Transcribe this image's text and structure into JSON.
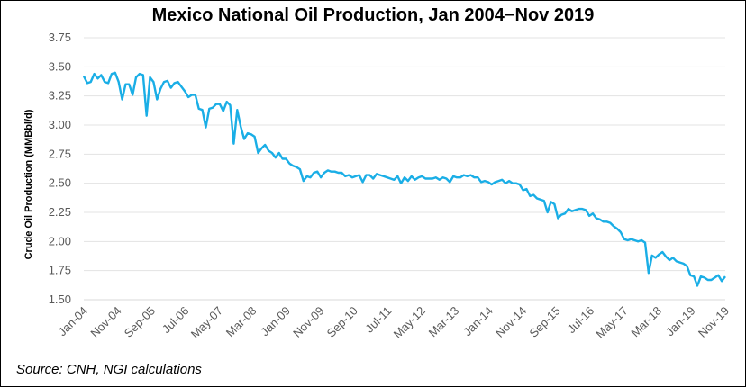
{
  "chart_data": {
    "type": "line",
    "title": "Mexico National Oil Production, Jan 2004−Nov 2019",
    "ylabel": "Crude Oil Production (MMBbl/d)",
    "xlabel": "",
    "ylim": [
      1.5,
      3.75
    ],
    "yticks": [
      "1.50",
      "1.75",
      "2.00",
      "2.25",
      "2.50",
      "2.75",
      "3.00",
      "3.25",
      "3.50",
      "3.75"
    ],
    "xticks": [
      "Jan-04",
      "Nov-04",
      "Sep-05",
      "Jul-06",
      "May-07",
      "Mar-08",
      "Jan-09",
      "Nov-09",
      "Sep-10",
      "Jul-11",
      "May-12",
      "Mar-13",
      "Jan-14",
      "Nov-14",
      "Sep-15",
      "Jul-16",
      "May-17",
      "Mar-18",
      "Jan-19",
      "Nov-19"
    ],
    "grid": "horizontal",
    "color": "#1aaee6",
    "series": [
      {
        "values": [
          3.42,
          3.36,
          3.37,
          3.44,
          3.4,
          3.43,
          3.37,
          3.36,
          3.44,
          3.45,
          3.37,
          3.22,
          3.35,
          3.35,
          3.26,
          3.41,
          3.44,
          3.43,
          3.08,
          3.41,
          3.37,
          3.22,
          3.31,
          3.37,
          3.38,
          3.32,
          3.36,
          3.37,
          3.33,
          3.29,
          3.24,
          3.26,
          3.26,
          3.14,
          3.13,
          2.98,
          3.14,
          3.15,
          3.18,
          3.18,
          3.12,
          3.2,
          3.17,
          2.84,
          3.13,
          2.99,
          2.88,
          2.93,
          2.92,
          2.9,
          2.76,
          2.8,
          2.83,
          2.78,
          2.76,
          2.72,
          2.76,
          2.71,
          2.71,
          2.67,
          2.65,
          2.64,
          2.62,
          2.52,
          2.56,
          2.55,
          2.59,
          2.6,
          2.55,
          2.59,
          2.61,
          2.6,
          2.6,
          2.59,
          2.59,
          2.56,
          2.57,
          2.55,
          2.56,
          2.57,
          2.51,
          2.57,
          2.57,
          2.54,
          2.58,
          2.57,
          2.56,
          2.55,
          2.54,
          2.53,
          2.56,
          2.5,
          2.55,
          2.52,
          2.56,
          2.53,
          2.55,
          2.56,
          2.54,
          2.54,
          2.54,
          2.55,
          2.53,
          2.55,
          2.54,
          2.51,
          2.56,
          2.55,
          2.55,
          2.57,
          2.56,
          2.57,
          2.55,
          2.55,
          2.51,
          2.52,
          2.51,
          2.49,
          2.51,
          2.52,
          2.53,
          2.5,
          2.52,
          2.5,
          2.5,
          2.49,
          2.44,
          2.45,
          2.39,
          2.4,
          2.37,
          2.36,
          2.35,
          2.25,
          2.34,
          2.32,
          2.2,
          2.23,
          2.24,
          2.28,
          2.26,
          2.27,
          2.28,
          2.28,
          2.27,
          2.22,
          2.24,
          2.2,
          2.19,
          2.17,
          2.17,
          2.16,
          2.13,
          2.11,
          2.08,
          2.02,
          2.01,
          2.02,
          2.01,
          2.0,
          2.01,
          1.99,
          1.73,
          1.88,
          1.86,
          1.89,
          1.91,
          1.87,
          1.84,
          1.86,
          1.83,
          1.82,
          1.81,
          1.79,
          1.71,
          1.7,
          1.62,
          1.7,
          1.69,
          1.67,
          1.67,
          1.69,
          1.71,
          1.66,
          1.7
        ]
      }
    ]
  },
  "source": "Source: CNH, NGI calculations"
}
